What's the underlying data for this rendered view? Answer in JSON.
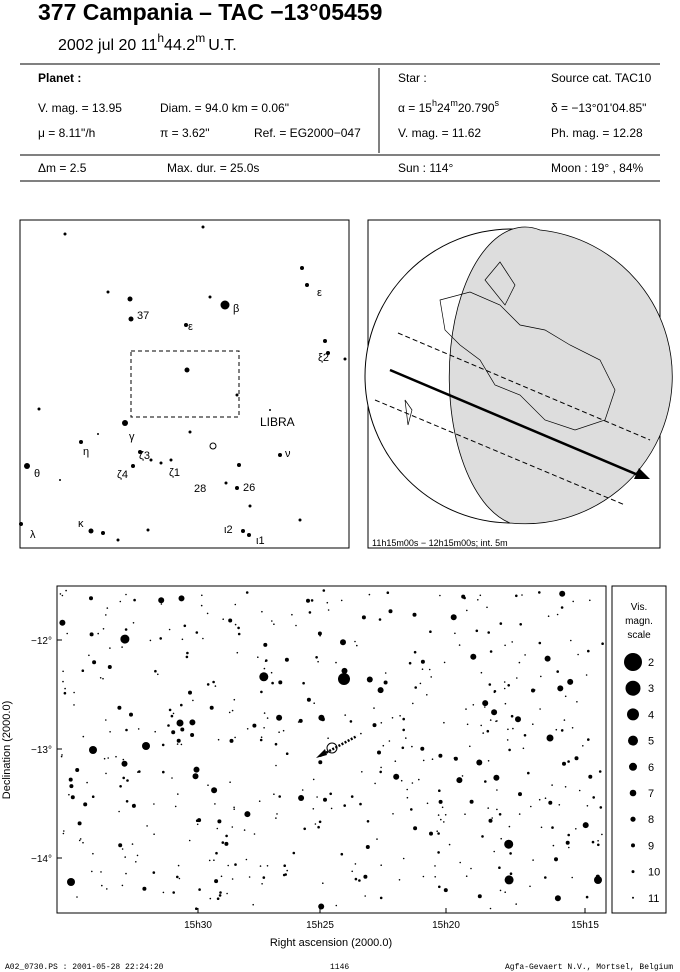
{
  "header": {
    "title": "377 Campania  –  TAC −13°05459",
    "date": "2002 jul 20",
    "hour": "11",
    "hour_unit": "h",
    "minutes": "44.2",
    "minute_unit": "m",
    "time_scale": "U.T."
  },
  "planet": {
    "label": "Planet :",
    "vmag": "V. mag. = 13.95",
    "diam": "Diam. = 94.0 km = 0.06\"",
    "mu": "μ =  8.11\"/h",
    "parallax": "π =  3.62\"",
    "ref": "Ref. = EG2000−047"
  },
  "star": {
    "label": "Star :",
    "source": "Source cat.  TAC10",
    "ra_prefix": "α = 15",
    "ra_h": "h",
    "ra_min": "24",
    "ra_m": "m",
    "ra_sec": "20.790",
    "ra_s": "s",
    "dec": "δ = −13°01'04.85\"",
    "vmag": "V. mag. = 11.62",
    "phmag": "Ph. mag. = 12.28"
  },
  "summary": {
    "dm": "Δm = 2.5",
    "max_dur": "Max. dur. = 25.0s",
    "sun": "Sun : 114°",
    "moon": "Moon :  19° , 84%"
  },
  "finder": {
    "labels": [
      "37",
      "β",
      "ε",
      "ε",
      "ξ2",
      "LIBRA",
      "γ",
      "η",
      "θ",
      "ζ3",
      "ζ4",
      "ζ1",
      "28",
      "26",
      "ν",
      "κ",
      "λ",
      "ι2",
      "ι1"
    ]
  },
  "globe": {
    "caption": "11h15m00s − 12h15m00s; int.  5m"
  },
  "sky_chart": {
    "y_axis_label": "Declination (2000.0)",
    "x_axis_label": "Right ascension (2000.0)",
    "y_ticks": [
      "−12°",
      "−13°",
      "−14°"
    ],
    "x_ticks": [
      "15h30",
      "15h25",
      "15h20",
      "15h15"
    ]
  },
  "legend": {
    "title": [
      "Vis.",
      "magn.",
      "scale"
    ],
    "magnitudes": [
      "2",
      "3",
      "4",
      "5",
      "6",
      "7",
      "8",
      "9",
      "10",
      "11"
    ]
  },
  "footer": {
    "file": "A02_0730.PS : 2001-05-28 22:24:20",
    "page": "1146",
    "credit": "Agfa-Gevaert N.V., Mortsel, Belgium"
  }
}
